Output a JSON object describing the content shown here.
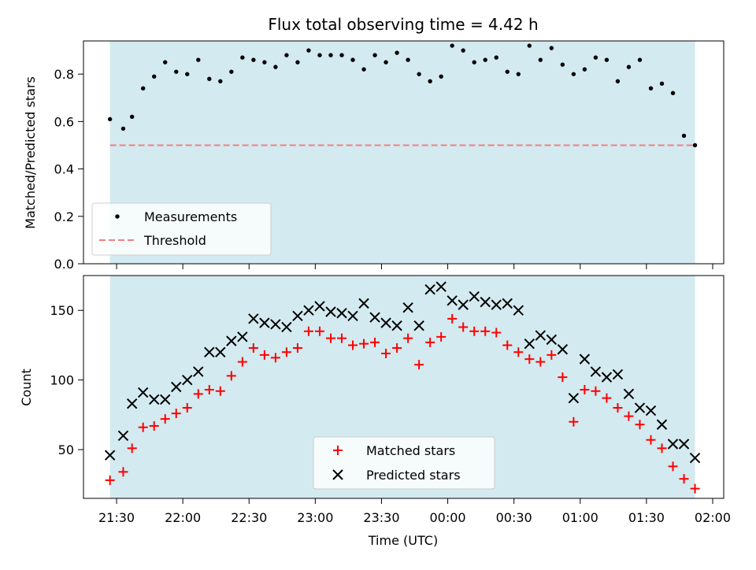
{
  "chart_data": [
    {
      "type": "scatter",
      "title": "Flux total observing time = 4.42 h",
      "xlabel": "",
      "ylabel": "Matched/Predicted stars",
      "ylim": [
        0.0,
        0.94
      ],
      "yticks": [
        "0.0",
        "0.2",
        "0.4",
        "0.6",
        "0.8"
      ],
      "shaded_span": {
        "color": "#d3eaf0"
      },
      "threshold": {
        "name": "Threshold",
        "value": 0.5,
        "color": "#f08080",
        "style": "dashed"
      },
      "series": [
        {
          "name": "Measurements",
          "marker": "dot",
          "color": "#000000",
          "x": [
            "21:27",
            "21:33",
            "21:37",
            "21:42",
            "21:47",
            "21:52",
            "21:57",
            "22:02",
            "22:07",
            "22:12",
            "22:17",
            "22:22",
            "22:27",
            "22:32",
            "22:37",
            "22:42",
            "22:47",
            "22:52",
            "22:57",
            "23:02",
            "23:07",
            "23:12",
            "23:17",
            "23:22",
            "23:27",
            "23:32",
            "23:37",
            "23:42",
            "23:47",
            "23:52",
            "23:57",
            "00:02",
            "00:07",
            "00:12",
            "00:17",
            "00:22",
            "00:27",
            "00:32",
            "00:37",
            "00:42",
            "00:47",
            "00:52",
            "00:57",
            "01:02",
            "01:07",
            "01:12",
            "01:17",
            "01:22",
            "01:27",
            "01:32",
            "01:37",
            "01:42",
            "01:47",
            "01:52"
          ],
          "y": [
            0.61,
            0.57,
            0.62,
            0.74,
            0.79,
            0.85,
            0.81,
            0.8,
            0.86,
            0.78,
            0.77,
            0.81,
            0.87,
            0.86,
            0.85,
            0.83,
            0.88,
            0.85,
            0.9,
            0.88,
            0.88,
            0.88,
            0.86,
            0.82,
            0.88,
            0.85,
            0.89,
            0.86,
            0.8,
            0.77,
            0.79,
            0.92,
            0.9,
            0.85,
            0.86,
            0.87,
            0.81,
            0.8,
            0.92,
            0.86,
            0.91,
            0.84,
            0.8,
            0.82,
            0.87,
            0.86,
            0.77,
            0.83,
            0.86,
            0.74,
            0.76,
            0.72,
            0.54,
            0.5
          ]
        }
      ]
    },
    {
      "type": "scatter",
      "title": "",
      "xlabel": "Time (UTC)",
      "ylabel": "Count",
      "ylim": [
        15,
        175
      ],
      "yticks": [
        "50",
        "100",
        "150"
      ],
      "xticks": [
        "21:30",
        "22:00",
        "22:30",
        "23:00",
        "23:30",
        "00:00",
        "00:30",
        "01:00",
        "01:30",
        "02:00"
      ],
      "shaded_span": {
        "color": "#d3eaf0"
      },
      "series": [
        {
          "name": "Matched stars",
          "marker": "plus",
          "color": "#ff0000",
          "x": [
            "21:27",
            "21:33",
            "21:37",
            "21:42",
            "21:47",
            "21:52",
            "21:57",
            "22:02",
            "22:07",
            "22:12",
            "22:17",
            "22:22",
            "22:27",
            "22:32",
            "22:37",
            "22:42",
            "22:47",
            "22:52",
            "22:57",
            "23:02",
            "23:07",
            "23:12",
            "23:17",
            "23:22",
            "23:27",
            "23:32",
            "23:37",
            "23:42",
            "23:47",
            "23:52",
            "23:57",
            "00:02",
            "00:07",
            "00:12",
            "00:17",
            "00:22",
            "00:27",
            "00:32",
            "00:37",
            "00:42",
            "00:47",
            "00:52",
            "00:57",
            "01:02",
            "01:07",
            "01:12",
            "01:17",
            "01:22",
            "01:27",
            "01:32",
            "01:37",
            "01:42",
            "01:47",
            "01:52"
          ],
          "y": [
            28,
            34,
            51,
            66,
            67,
            72,
            76,
            80,
            90,
            93,
            92,
            103,
            113,
            123,
            118,
            116,
            120,
            123,
            135,
            135,
            130,
            130,
            125,
            126,
            127,
            119,
            123,
            130,
            111,
            127,
            131,
            144,
            138,
            135,
            135,
            134,
            125,
            120,
            115,
            113,
            118,
            102,
            70,
            93,
            92,
            87,
            80,
            74,
            68,
            57,
            51,
            38,
            29,
            22
          ]
        },
        {
          "name": "Predicted stars",
          "marker": "x",
          "color": "#000000",
          "x": [
            "21:27",
            "21:33",
            "21:37",
            "21:42",
            "21:47",
            "21:52",
            "21:57",
            "22:02",
            "22:07",
            "22:12",
            "22:17",
            "22:22",
            "22:27",
            "22:32",
            "22:37",
            "22:42",
            "22:47",
            "22:52",
            "22:57",
            "23:02",
            "23:07",
            "23:12",
            "23:17",
            "23:22",
            "23:27",
            "23:32",
            "23:37",
            "23:42",
            "23:47",
            "23:52",
            "23:57",
            "00:02",
            "00:07",
            "00:12",
            "00:17",
            "00:22",
            "00:27",
            "00:32",
            "00:37",
            "00:42",
            "00:47",
            "00:52",
            "00:57",
            "01:02",
            "01:07",
            "01:12",
            "01:17",
            "01:22",
            "01:27",
            "01:32",
            "01:37",
            "01:42",
            "01:47",
            "01:52"
          ],
          "y": [
            46,
            60,
            83,
            91,
            86,
            86,
            95,
            100,
            106,
            120,
            120,
            128,
            131,
            144,
            141,
            140,
            138,
            146,
            150,
            153,
            149,
            148,
            146,
            155,
            145,
            141,
            139,
            152,
            139,
            165,
            167,
            157,
            154,
            160,
            156,
            154,
            155,
            150,
            126,
            132,
            129,
            122,
            87,
            115,
            106,
            102,
            104,
            90,
            80,
            78,
            68,
            54,
            54,
            44
          ]
        }
      ]
    }
  ]
}
